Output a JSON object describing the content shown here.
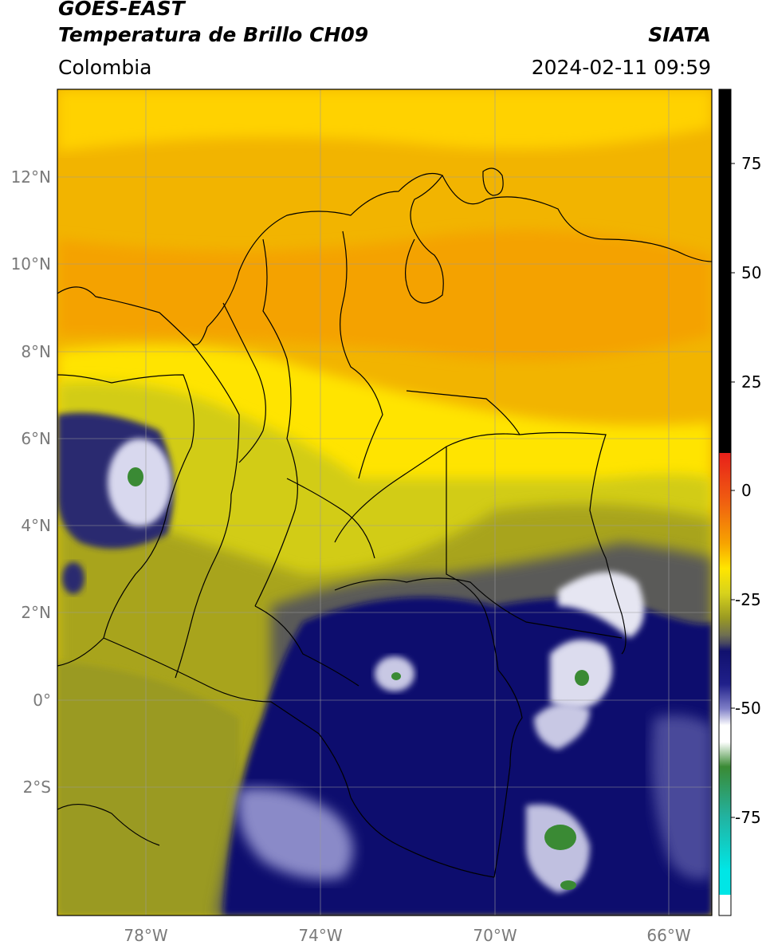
{
  "header": {
    "satellite": "GOES-EAST",
    "product": "Temperatura de Brillo CH09",
    "region": "Colombia",
    "agency": "SIATA",
    "datetime": "2024-02-11 09:59"
  },
  "axes": {
    "lat_labels": [
      "12°N",
      "10°N",
      "8°N",
      "6°N",
      "4°N",
      "2°N",
      "0°",
      "2°S"
    ],
    "lon_labels": [
      "78°W",
      "74°W",
      "70°W",
      "66°W"
    ]
  },
  "colorbar": {
    "tick_labels": [
      "75",
      "50",
      "25",
      "0",
      "-25",
      "-50",
      "-75"
    ],
    "colors": {
      "black": "#000000",
      "red": "#e8201a",
      "orange": "#f7a400",
      "yellow": "#ffe600",
      "olive": "#9a9a22",
      "gray": "#4a4a60",
      "navy": "#10106e",
      "white": "#ffffff",
      "green": "#3a8a34",
      "teal": "#22b2a0",
      "cyan": "#00e6e6"
    }
  }
}
